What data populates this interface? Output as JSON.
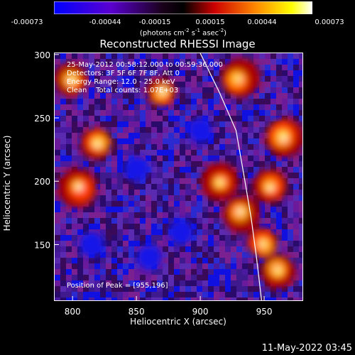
{
  "colorbar": {
    "ticks": [
      "-0.00073",
      "-0.00044",
      "-0.00015",
      "0.00015",
      "0.00044",
      "0.00073"
    ],
    "unit_text": "(photons cm",
    "unit_exp1": "-2",
    "unit_mid": " s",
    "unit_exp2": "-1",
    "unit_mid2": " asec",
    "unit_exp3": "-2",
    "unit_end": ")",
    "colors": [
      "#0000ff",
      "#6600cc",
      "#000000",
      "#cc0000",
      "#ff8800",
      "#ffff00",
      "#ffffff"
    ]
  },
  "title": "Reconstructed RHESSI Image",
  "info": {
    "line1": "25-May-2012 00:58:12.000 to 00:59:36.000",
    "line2": "Detectors: 3F 5F 6F 7F 8F, Att 0",
    "line3": "Energy Range: 12.0 - 25.0 keV",
    "line4": "Clean    Total counts: 1.07E+03"
  },
  "peak_text": "Position of Peak = [955,196]",
  "footer": "11-May-2022 03:45",
  "chart_data": {
    "type": "heatmap",
    "title": "Reconstructed RHESSI Image",
    "xlabel": "Heliocentric X (arcsec)",
    "ylabel": "Heliocentric Y (arcsec)",
    "xlim": [
      786,
      980
    ],
    "ylim": [
      106,
      301
    ],
    "xticks": [
      800,
      850,
      900,
      950
    ],
    "yticks": [
      150,
      200,
      250,
      300
    ],
    "color_range": [
      -0.00073,
      0.00073
    ],
    "peak_position": [
      955,
      196
    ],
    "limb_curve": [
      [
        900,
        301
      ],
      [
        915,
        270
      ],
      [
        928,
        240
      ],
      [
        935,
        200
      ],
      [
        940,
        170
      ],
      [
        944,
        140
      ],
      [
        948,
        106
      ]
    ],
    "blob_centers_bright": [
      [
        955,
        196
      ],
      [
        965,
        235
      ],
      [
        932,
        175
      ],
      [
        950,
        150
      ],
      [
        820,
        230
      ],
      [
        805,
        195
      ],
      [
        930,
        280
      ],
      [
        870,
        270
      ],
      [
        800,
        280
      ],
      [
        915,
        200
      ],
      [
        960,
        130
      ]
    ],
    "blob_centers_dim": [
      [
        815,
        150
      ],
      [
        850,
        210
      ],
      [
        885,
        160
      ],
      [
        860,
        140
      ],
      [
        900,
        240
      ]
    ]
  }
}
